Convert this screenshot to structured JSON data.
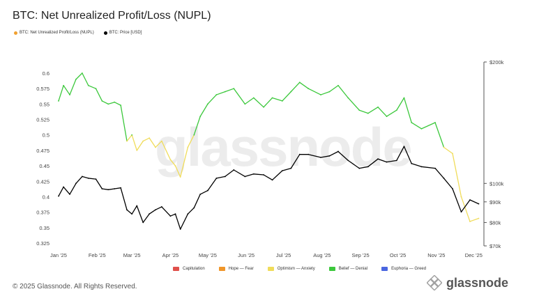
{
  "title": "BTC: Net Unrealized Profit/Loss (NUPL)",
  "copyright": "© 2025 Glassnode. All Rights Reserved.",
  "watermark_text": "glassnode",
  "badge_logo_text": "glassnode",
  "top_legend": [
    {
      "label": "BTC: Net Unrealized Profit/Loss (NUPL)",
      "color": "#f0a030"
    },
    {
      "label": "BTC: Price [USD]",
      "color": "#000000"
    }
  ],
  "bottom_legend": [
    {
      "label": "Capitulation",
      "color": "#e0504b"
    },
    {
      "label": "Hope — Fear",
      "color": "#f0962a"
    },
    {
      "label": "Optimism — Anxiety",
      "color": "#f0dc5a"
    },
    {
      "label": "Belief — Denial",
      "color": "#3cc83c"
    },
    {
      "label": "Euphoria — Greed",
      "color": "#4a66e0"
    }
  ],
  "chart_data": {
    "type": "line",
    "title": "BTC: Net Unrealized Profit/Loss (NUPL)",
    "x_tick_labels": [
      "Jan '25",
      "Feb '25",
      "Mar '25",
      "Apr '25",
      "May '25",
      "Jun '25",
      "Jul '25",
      "Aug '25",
      "Sep '25",
      "Oct '25",
      "Nov '25",
      "Dec '25"
    ],
    "y_left_ticks": [
      "0.6",
      "0.575",
      "0.55",
      "0.525",
      "0.5",
      "0.475",
      "0.45",
      "0.425",
      "0.4",
      "0.375",
      "0.35",
      "0.325"
    ],
    "y_left_range": [
      0.325,
      0.6
    ],
    "y_right_ticks": [
      {
        "label": "$200k",
        "value": 200000
      },
      {
        "label": "$100k",
        "value": 100000
      },
      {
        "label": "$90k",
        "value": 90000
      },
      {
        "label": "$80k",
        "value": 80000
      },
      {
        "label": "$70k",
        "value": 70000
      }
    ],
    "y_right_scale": "log",
    "y_right_range": [
      70000,
      200000
    ],
    "grid": false,
    "series": [
      {
        "name": "BTC: Net Unrealized Profit/Loss (NUPL)",
        "axis": "left",
        "colored_by_zone": true,
        "zones": [
          {
            "name": "Optimism — Anxiety",
            "max": 0.5,
            "color": "#f0dc5a"
          },
          {
            "name": "Belief — Denial",
            "min": 0.5,
            "color": "#3cc83c"
          }
        ],
        "x": [
          "2025-01-01",
          "2025-01-05",
          "2025-01-10",
          "2025-01-15",
          "2025-01-20",
          "2025-01-25",
          "2025-01-31",
          "2025-02-05",
          "2025-02-10",
          "2025-02-15",
          "2025-02-20",
          "2025-02-25",
          "2025-03-01",
          "2025-03-05",
          "2025-03-10",
          "2025-03-15",
          "2025-03-20",
          "2025-03-25",
          "2025-04-01",
          "2025-04-05",
          "2025-04-09",
          "2025-04-15",
          "2025-04-20",
          "2025-04-25",
          "2025-05-01",
          "2025-05-08",
          "2025-05-15",
          "2025-05-22",
          "2025-05-31",
          "2025-06-07",
          "2025-06-15",
          "2025-06-22",
          "2025-06-30",
          "2025-07-07",
          "2025-07-14",
          "2025-07-21",
          "2025-07-31",
          "2025-08-07",
          "2025-08-14",
          "2025-08-22",
          "2025-08-31",
          "2025-09-07",
          "2025-09-15",
          "2025-09-22",
          "2025-09-30",
          "2025-10-06",
          "2025-10-12",
          "2025-10-20",
          "2025-10-31",
          "2025-11-07",
          "2025-11-14",
          "2025-11-21",
          "2025-11-28",
          "2025-12-05"
        ],
        "values": [
          0.555,
          0.58,
          0.565,
          0.59,
          0.6,
          0.58,
          0.575,
          0.555,
          0.55,
          0.553,
          0.548,
          0.49,
          0.5,
          0.475,
          0.49,
          0.495,
          0.48,
          0.49,
          0.46,
          0.45,
          0.432,
          0.48,
          0.5,
          0.53,
          0.55,
          0.565,
          0.57,
          0.575,
          0.55,
          0.56,
          0.545,
          0.56,
          0.555,
          0.57,
          0.585,
          0.575,
          0.565,
          0.57,
          0.58,
          0.56,
          0.54,
          0.535,
          0.545,
          0.53,
          0.54,
          0.56,
          0.52,
          0.51,
          0.52,
          0.48,
          0.47,
          0.4,
          0.36,
          0.365
        ]
      },
      {
        "name": "BTC: Price [USD]",
        "axis": "right",
        "color": "#000000",
        "x": [
          "2025-01-01",
          "2025-01-05",
          "2025-01-10",
          "2025-01-15",
          "2025-01-20",
          "2025-01-25",
          "2025-01-31",
          "2025-02-05",
          "2025-02-10",
          "2025-02-15",
          "2025-02-20",
          "2025-02-25",
          "2025-03-01",
          "2025-03-05",
          "2025-03-10",
          "2025-03-15",
          "2025-03-20",
          "2025-03-25",
          "2025-04-01",
          "2025-04-05",
          "2025-04-09",
          "2025-04-15",
          "2025-04-20",
          "2025-04-25",
          "2025-05-01",
          "2025-05-08",
          "2025-05-15",
          "2025-05-22",
          "2025-05-31",
          "2025-06-07",
          "2025-06-15",
          "2025-06-22",
          "2025-06-30",
          "2025-07-07",
          "2025-07-14",
          "2025-07-21",
          "2025-07-31",
          "2025-08-07",
          "2025-08-14",
          "2025-08-22",
          "2025-08-31",
          "2025-09-07",
          "2025-09-15",
          "2025-09-22",
          "2025-09-30",
          "2025-10-06",
          "2025-10-12",
          "2025-10-20",
          "2025-10-31",
          "2025-11-07",
          "2025-11-14",
          "2025-11-21",
          "2025-11-28",
          "2025-12-05"
        ],
        "values": [
          93000,
          98000,
          94000,
          100000,
          104000,
          103000,
          102500,
          97000,
          96500,
          97000,
          97500,
          86000,
          84000,
          88000,
          80000,
          84000,
          86000,
          87500,
          83000,
          84000,
          77000,
          84000,
          87000,
          94000,
          96000,
          103000,
          104000,
          108000,
          104000,
          105500,
          105000,
          102000,
          107500,
          109000,
          118000,
          118000,
          116000,
          117000,
          120000,
          114000,
          109000,
          110000,
          115000,
          113000,
          114000,
          123500,
          112000,
          110000,
          109000,
          103000,
          97000,
          85000,
          91000,
          89000
        ]
      }
    ]
  }
}
